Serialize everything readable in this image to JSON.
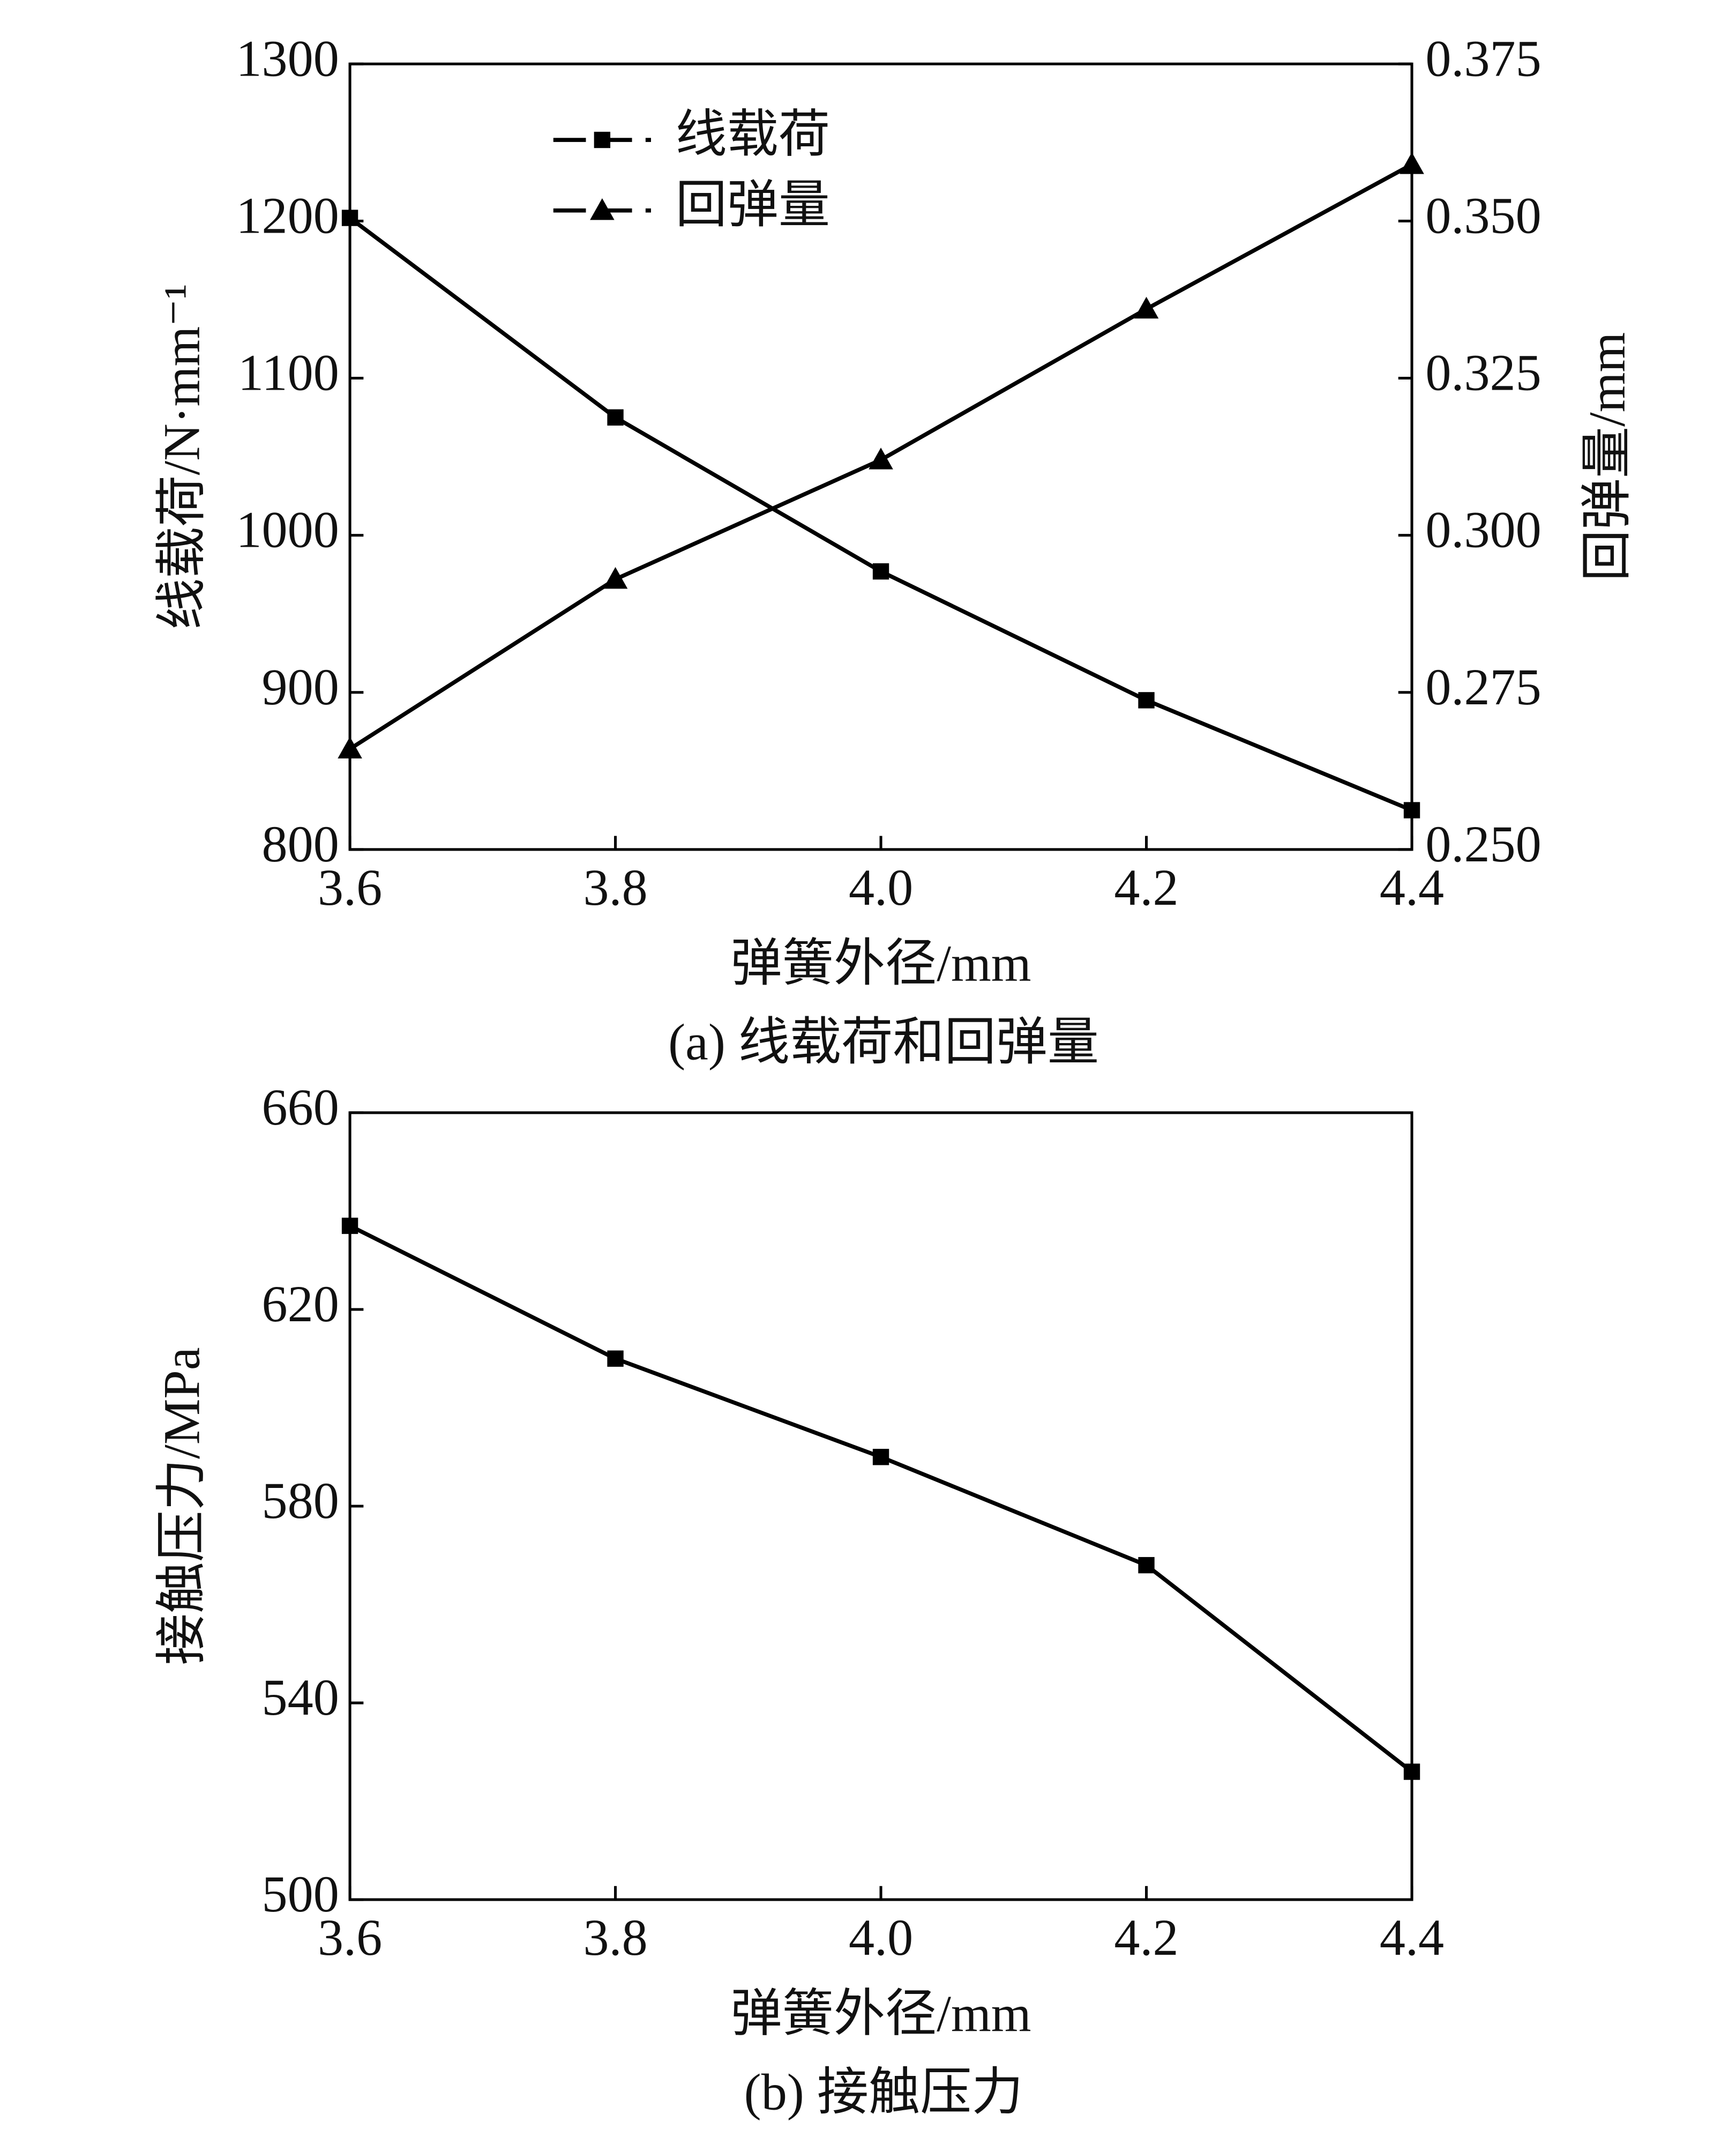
{
  "chart_data": [
    {
      "type": "line",
      "x": [
        3.6,
        3.8,
        4.0,
        4.2,
        4.4
      ],
      "xlim": [
        3.6,
        4.4
      ],
      "xticks": [
        3.6,
        3.8,
        {
          "value": 4.0,
          "label": "4.0"
        },
        4.2,
        4.4
      ],
      "xlabel": "弹簧外径/mm",
      "ylabel": "线载荷/N·mm⁻¹",
      "y2label": "回弹量/mm",
      "caption": "(a) 线载荷和回弹量",
      "ylim": [
        800,
        1300
      ],
      "yticks": [
        800,
        900,
        1000,
        1100,
        1200,
        1300
      ],
      "y2lim": [
        0.25,
        0.375
      ],
      "y2ticks": [
        {
          "value": 0.25,
          "label": "0.250"
        },
        0.275,
        {
          "value": 0.3,
          "label": "0.300"
        },
        0.325,
        {
          "value": 0.35,
          "label": "0.350"
        },
        0.375
      ],
      "legend": "upper left",
      "series": [
        {
          "name": "线载荷",
          "color": "#000000",
          "marker": "square",
          "values": [
            1202,
            1075,
            977,
            895,
            825
          ]
        },
        {
          "name": "回弹量",
          "color": "#000000",
          "marker": "triangle",
          "axis": "y2",
          "values": [
            0.266,
            0.293,
            0.312,
            0.336,
            0.359
          ]
        }
      ]
    },
    {
      "type": "line",
      "x": [
        3.6,
        3.8,
        4.0,
        4.2,
        4.4
      ],
      "xlim": [
        3.6,
        4.4
      ],
      "xticks": [
        3.6,
        3.8,
        {
          "value": 4.0,
          "label": "4.0"
        },
        4.2,
        4.4
      ],
      "xlabel": "弹簧外径/mm",
      "ylabel": "接触压力/MPa",
      "caption": "(b) 接触压力",
      "ylim": [
        500,
        660
      ],
      "yticks": [
        500,
        540,
        580,
        620,
        660
      ],
      "series": [
        {
          "color": "#000000",
          "marker": "square",
          "values": [
            637,
            610,
            590,
            568,
            526
          ]
        }
      ]
    }
  ]
}
